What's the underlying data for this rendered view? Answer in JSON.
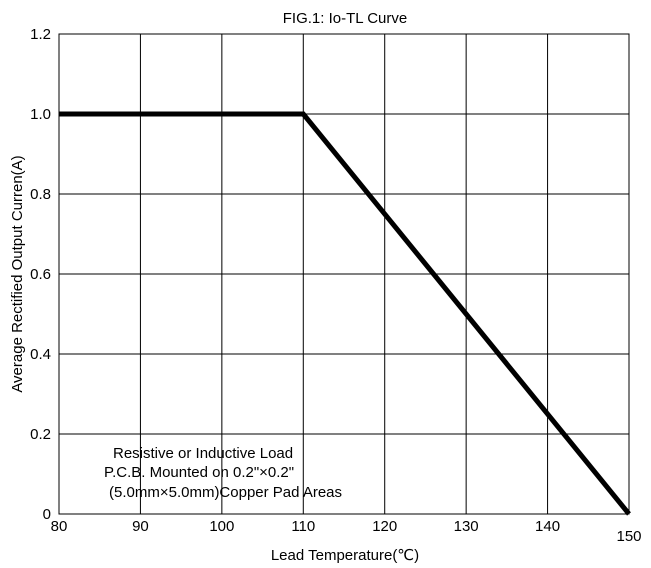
{
  "chart_data": {
    "type": "line",
    "title": "FIG.1: Io-TL Curve",
    "xlabel": "Lead Temperature(℃)",
    "ylabel": "Average Rectified Output Curren(A)",
    "xlim": [
      80,
      150
    ],
    "ylim": [
      0,
      1.2
    ],
    "x_ticks": [
      80,
      90,
      100,
      110,
      120,
      130,
      140,
      150
    ],
    "x_tick_labels": [
      "80",
      "90",
      "100",
      "110",
      "120",
      "130",
      "140",
      "150"
    ],
    "y_ticks": [
      0,
      0.2,
      0.4,
      0.6,
      0.8,
      1.0,
      1.2
    ],
    "y_tick_labels": [
      "0",
      "0.2",
      "0.4",
      "0.6",
      "0.8",
      "1.0",
      "1.2"
    ],
    "grid": true,
    "series": [
      {
        "x": [
          80,
          110,
          150
        ],
        "y": [
          1.0,
          1.0,
          0
        ],
        "color": "#000000"
      }
    ],
    "annotation": {
      "lines": [
        "Resistive or Inductive Load",
        "P.C.B. Mounted on 0.2\"×0.2\"",
        "(5.0mm×5.0mm)Copper Pad Areas"
      ],
      "position": "bottom-left"
    }
  }
}
